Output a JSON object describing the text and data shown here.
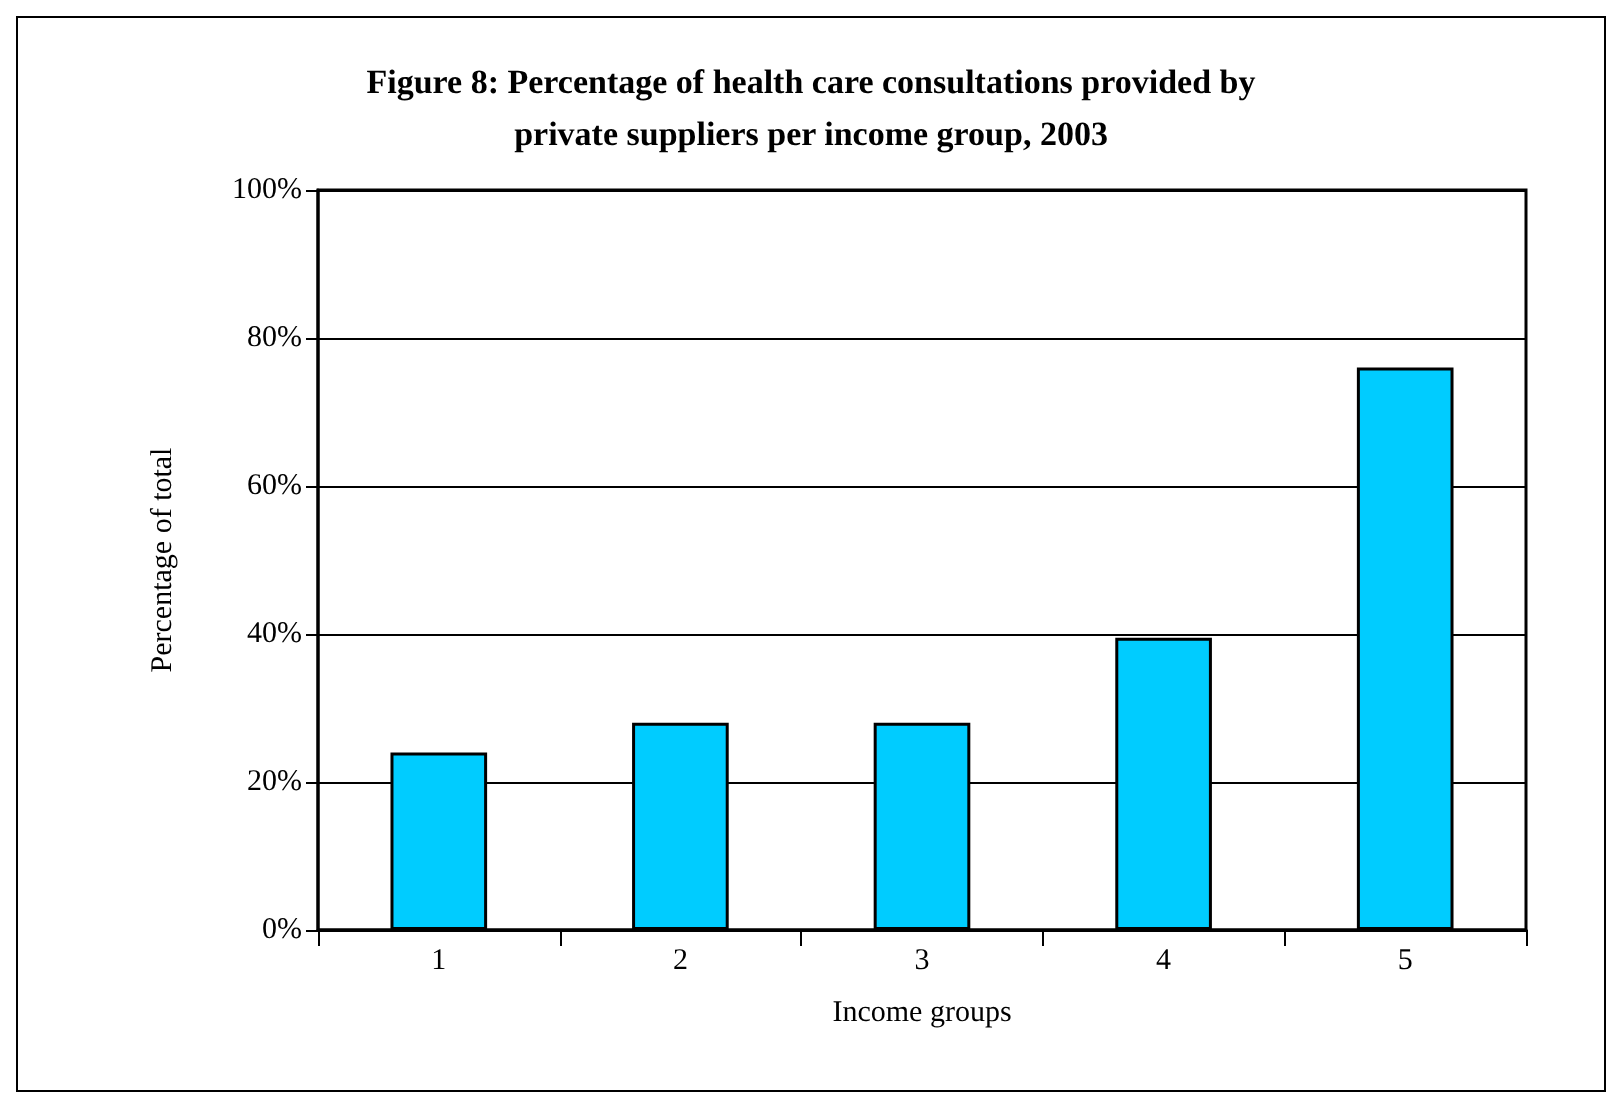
{
  "chart_data": {
    "type": "bar",
    "title": "Figure 8: Percentage of health care consultations provided by\nprivate suppliers per income group, 2003",
    "xlabel": "Income groups",
    "ylabel": "Percentage of total",
    "categories": [
      "1",
      "2",
      "3",
      "4",
      "5"
    ],
    "values": [
      24,
      28,
      28,
      39.5,
      76
    ],
    "color": "#00ccff",
    "ylim": [
      0,
      100
    ],
    "yticks": [
      {
        "value": 0,
        "label": "0%"
      },
      {
        "value": 20,
        "label": "20%"
      },
      {
        "value": 40,
        "label": "40%"
      },
      {
        "value": 60,
        "label": "60%"
      },
      {
        "value": 80,
        "label": "80%"
      },
      {
        "value": 100,
        "label": "100%"
      }
    ],
    "grid": "y"
  }
}
